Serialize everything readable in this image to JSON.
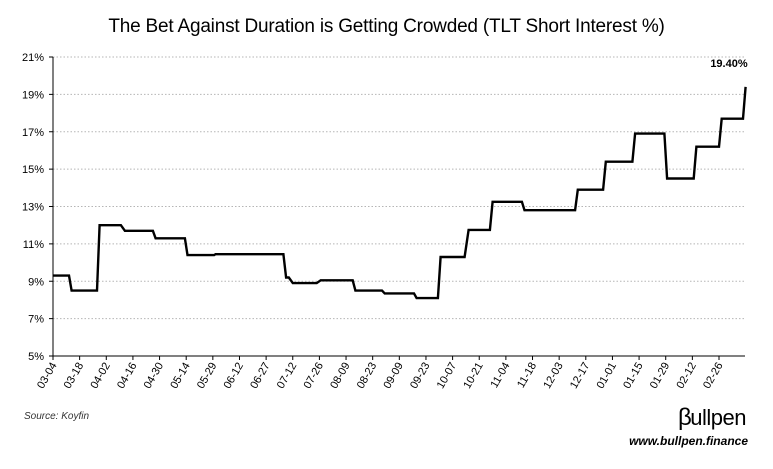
{
  "chart_data": {
    "type": "line",
    "title": "The Bet Against Duration is Getting Crowded (TLT Short Interest %)",
    "xlabel": "",
    "ylabel": "",
    "ylim": [
      5,
      21
    ],
    "yticks": [
      "5%",
      "7%",
      "9%",
      "11%",
      "13%",
      "15%",
      "17%",
      "19%",
      "21%"
    ],
    "ytick_values": [
      5,
      7,
      9,
      11,
      13,
      15,
      17,
      19,
      21
    ],
    "xticks": [
      "03-04",
      "03-18",
      "04-02",
      "04-16",
      "04-30",
      "05-14",
      "05-29",
      "06-12",
      "06-27",
      "07-12",
      "07-26",
      "08-09",
      "08-23",
      "09-09",
      "09-23",
      "10-07",
      "10-21",
      "11-04",
      "11-18",
      "12-03",
      "12-17",
      "01-01",
      "01-15",
      "01-29",
      "02-12",
      "02-26"
    ],
    "grid": "horizontal dotted",
    "series": [
      {
        "color": "#000000",
        "points": [
          [
            0,
            9.3
          ],
          [
            0.6,
            9.3
          ],
          [
            0.7,
            8.5
          ],
          [
            1.65,
            8.5
          ],
          [
            1.75,
            12.0
          ],
          [
            2.55,
            12.0
          ],
          [
            2.7,
            11.7
          ],
          [
            3.75,
            11.7
          ],
          [
            3.85,
            11.3
          ],
          [
            4.95,
            11.3
          ],
          [
            5.05,
            10.4
          ],
          [
            6.05,
            10.4
          ],
          [
            6.1,
            10.45
          ],
          [
            8.65,
            10.45
          ],
          [
            8.75,
            9.2
          ],
          [
            8.85,
            9.2
          ],
          [
            9.0,
            8.9
          ],
          [
            9.9,
            8.9
          ],
          [
            10.05,
            9.05
          ],
          [
            11.25,
            9.05
          ],
          [
            11.35,
            8.5
          ],
          [
            12.35,
            8.5
          ],
          [
            12.45,
            8.35
          ],
          [
            13.55,
            8.35
          ],
          [
            13.65,
            8.1
          ],
          [
            14.45,
            8.1
          ],
          [
            14.55,
            10.3
          ],
          [
            15.45,
            10.3
          ],
          [
            15.6,
            11.75
          ],
          [
            16.4,
            11.75
          ],
          [
            16.5,
            13.25
          ],
          [
            17.6,
            13.25
          ],
          [
            17.7,
            12.8
          ],
          [
            19.6,
            12.8
          ],
          [
            19.7,
            13.9
          ],
          [
            20.65,
            13.9
          ],
          [
            20.75,
            15.4
          ],
          [
            21.75,
            15.4
          ],
          [
            21.85,
            16.9
          ],
          [
            22.95,
            16.9
          ],
          [
            23.05,
            14.5
          ],
          [
            24.05,
            14.5
          ],
          [
            24.15,
            16.2
          ],
          [
            25.0,
            16.2
          ],
          [
            25.1,
            17.7
          ],
          [
            25.9,
            17.7
          ],
          [
            26.0,
            19.4
          ]
        ]
      }
    ],
    "annotations": [
      {
        "text": "19.40%",
        "x": 26.0,
        "y": 19.4
      }
    ]
  },
  "footer": {
    "source": "Source: Koyfin",
    "brand_beta": "β",
    "brand_rest": "ullpen",
    "url": "www.bullpen.finance"
  }
}
